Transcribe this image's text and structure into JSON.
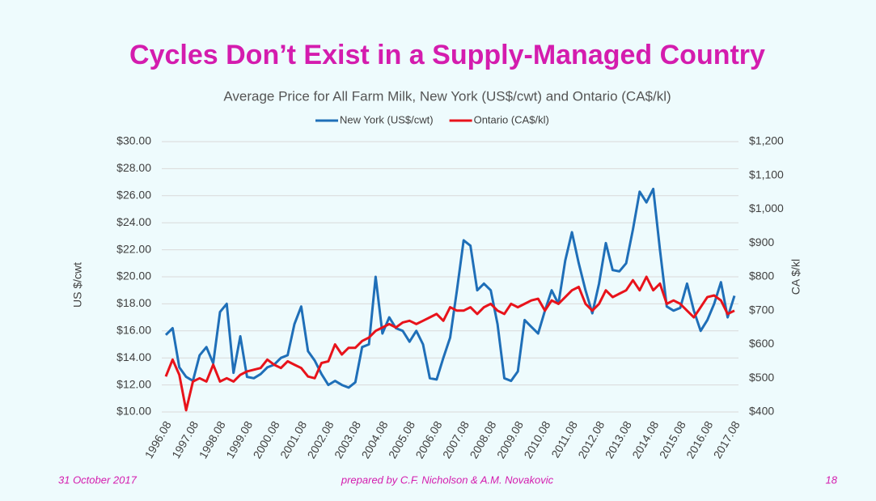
{
  "chart_data": {
    "type": "line",
    "slide_title": "Cycles Don’t Exist in a Supply-Managed Country",
    "title": "Average Price for All Farm Milk, New York (US$/cwt) and Ontario (CA$/kl)",
    "ylabel": "US $/cwt",
    "y2label": "CA $/kl",
    "categories": [
      "1996.08",
      null,
      null,
      null,
      "1997.08",
      null,
      null,
      null,
      "1998.08",
      null,
      null,
      null,
      "1999.08",
      null,
      null,
      null,
      "2000.08",
      null,
      null,
      null,
      "2001.08",
      null,
      null,
      null,
      "2002.08",
      null,
      null,
      null,
      "2003.08",
      null,
      null,
      null,
      "2004.08",
      null,
      null,
      null,
      "2005.08",
      null,
      null,
      null,
      "2006.08",
      null,
      null,
      null,
      "2007.08",
      null,
      null,
      null,
      "2008.08",
      null,
      null,
      null,
      "2009.08",
      null,
      null,
      null,
      "2010.08",
      null,
      null,
      null,
      "2011.08",
      null,
      null,
      null,
      "2012.08",
      null,
      null,
      null,
      "2013.08",
      null,
      null,
      null,
      "2014.08",
      null,
      null,
      null,
      "2015.08",
      null,
      null,
      null,
      "2016.08",
      null,
      null,
      null,
      "2017.08"
    ],
    "series": [
      {
        "name": "New York (US$/cwt)",
        "color": "#1f6fb8",
        "axis": "y",
        "values": [
          15.7,
          16.2,
          13.3,
          12.6,
          12.3,
          14.2,
          14.8,
          13.6,
          17.4,
          18.0,
          12.9,
          15.6,
          12.6,
          12.5,
          12.8,
          13.3,
          13.5,
          14.0,
          14.2,
          16.5,
          17.8,
          14.5,
          13.8,
          12.8,
          12.0,
          12.3,
          12.0,
          11.8,
          12.2,
          14.8,
          15.0,
          20.0,
          15.8,
          17.0,
          16.2,
          16.0,
          15.2,
          16.0,
          15.0,
          12.5,
          12.4,
          14.0,
          15.5,
          19.0,
          22.7,
          22.3,
          19.0,
          19.5,
          19.0,
          16.5,
          12.5,
          12.3,
          13.0,
          16.8,
          16.3,
          15.8,
          17.5,
          19.0,
          18.0,
          21.2,
          23.3,
          21.0,
          19.0,
          17.3,
          19.5,
          22.5,
          20.5,
          20.4,
          21.0,
          23.5,
          26.3,
          25.5,
          26.5,
          22.0,
          17.8,
          17.5,
          17.7,
          19.5,
          17.5,
          16.0,
          16.8,
          18.0,
          19.6,
          17.0,
          18.6
        ]
      },
      {
        "name": "Ontario (CA$/kl)",
        "color": "#e8131b",
        "axis": "y2",
        "values": [
          505,
          555,
          510,
          405,
          490,
          500,
          490,
          540,
          490,
          500,
          490,
          510,
          520,
          525,
          530,
          555,
          540,
          530,
          550,
          540,
          530,
          505,
          500,
          545,
          550,
          600,
          570,
          590,
          590,
          610,
          620,
          640,
          650,
          660,
          650,
          665,
          670,
          660,
          670,
          680,
          690,
          670,
          710,
          700,
          700,
          710,
          690,
          710,
          720,
          700,
          690,
          720,
          710,
          720,
          730,
          735,
          700,
          730,
          720,
          740,
          760,
          770,
          720,
          700,
          720,
          760,
          740,
          750,
          760,
          790,
          760,
          800,
          760,
          780,
          720,
          730,
          720,
          700,
          680,
          710,
          740,
          745,
          730,
          690,
          700
        ]
      }
    ],
    "ylim": [
      10,
      30
    ],
    "yticks": [
      {
        "value": 10,
        "label": "$10.00"
      },
      {
        "value": 12,
        "label": "$12.00"
      },
      {
        "value": 14,
        "label": "$14.00"
      },
      {
        "value": 16,
        "label": "$16.00"
      },
      {
        "value": 18,
        "label": "$18.00"
      },
      {
        "value": 20,
        "label": "$20.00"
      },
      {
        "value": 22,
        "label": "$22.00"
      },
      {
        "value": 24,
        "label": "$24.00"
      },
      {
        "value": 26,
        "label": "$26.00"
      },
      {
        "value": 28,
        "label": "$28.00"
      },
      {
        "value": 30,
        "label": "$30.00"
      }
    ],
    "y2lim": [
      400,
      1200
    ],
    "y2ticks": [
      {
        "value": 400,
        "label": "$400"
      },
      {
        "value": 500,
        "label": "$500"
      },
      {
        "value": 600,
        "label": "$600"
      },
      {
        "value": 700,
        "label": "$700"
      },
      {
        "value": 800,
        "label": "$800"
      },
      {
        "value": 900,
        "label": "$900"
      },
      {
        "value": 1000,
        "label": "$1,000"
      },
      {
        "value": 1100,
        "label": "$1,100"
      },
      {
        "value": 1200,
        "label": "$1,200"
      }
    ],
    "grid": true,
    "legend": "top"
  },
  "footer": {
    "date": "31 October 2017",
    "credit": "prepared by C.F. Nicholson & A.M. Novakovic",
    "page": "18"
  }
}
